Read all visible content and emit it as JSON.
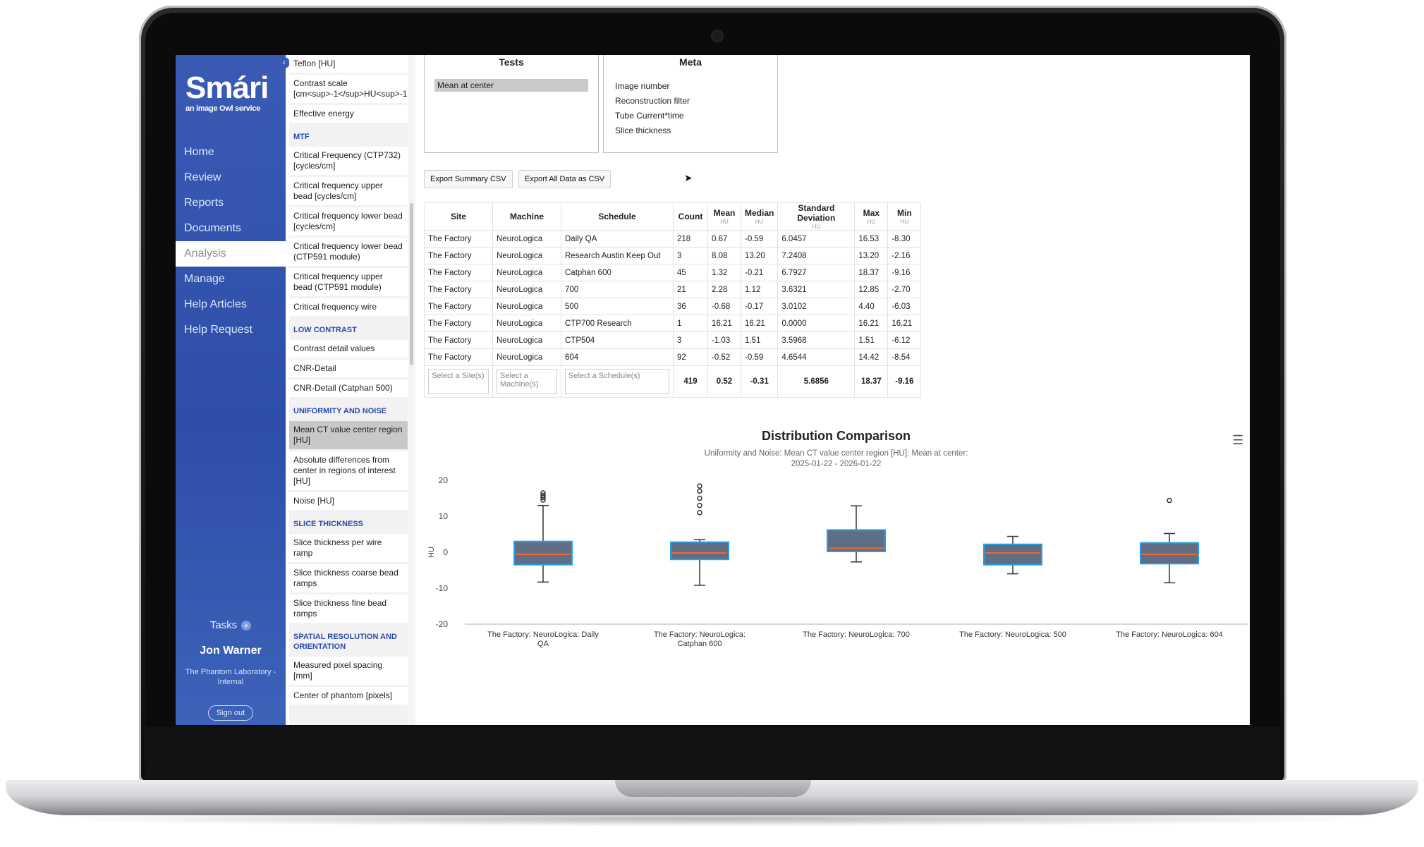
{
  "sidebar": {
    "logo": "Smári",
    "logo_sub": "an image Owl service",
    "nav": [
      "Home",
      "Review",
      "Reports",
      "Documents",
      "Analysis",
      "Manage",
      "Help Articles",
      "Help Request"
    ],
    "active_nav": "Analysis",
    "tasks_label": "Tasks",
    "user_name": "Jon Warner",
    "organization": "The Phantom Laboratory - Internal",
    "sign_out": "Sign out"
  },
  "metrics": [
    {
      "label": "Teflon [HU]"
    },
    {
      "label": "Contrast scale [cm<sup>-1</sup>HU<sup>-1"
    },
    {
      "label": "Effective energy"
    },
    {
      "heading": "MTF"
    },
    {
      "label": "Critical Frequency (CTP732) [cycles/cm]"
    },
    {
      "label": "Critical frequency upper bead [cycles/cm]"
    },
    {
      "label": "Critical frequency lower bead [cycles/cm]"
    },
    {
      "label": "Critical frequency lower bead (CTP591 module)"
    },
    {
      "label": "Critical frequency upper bead (CTP591 module)"
    },
    {
      "label": "Critical frequency wire"
    },
    {
      "heading": "LOW CONTRAST"
    },
    {
      "label": "Contrast detail values"
    },
    {
      "label": "CNR-Detail"
    },
    {
      "label": "CNR-Detail (Catphan 500)"
    },
    {
      "heading": "UNIFORMITY AND NOISE"
    },
    {
      "label": "Mean CT value center region [HU]",
      "selected": true
    },
    {
      "label": "Absolute differences from center in regions of interest [HU]"
    },
    {
      "label": "Noise [HU]"
    },
    {
      "heading": "SLICE THICKNESS"
    },
    {
      "label": "Slice thickness per wire ramp"
    },
    {
      "label": "Slice thickness coarse bead ramps"
    },
    {
      "label": "Slice thickness fine bead ramps"
    },
    {
      "heading": "SPATIAL RESOLUTION AND ORIENTATION"
    },
    {
      "label": "Measured pixel spacing [mm]"
    },
    {
      "label": "Center of phantom [pixels]"
    }
  ],
  "tests_panel": {
    "title": "Tests",
    "selected": "Mean at center"
  },
  "meta_panel": {
    "title": "Meta",
    "items": [
      "Image number",
      "Reconstruction filter",
      "Tube Current*time",
      "Slice thickness"
    ]
  },
  "buttons": {
    "export_summary": "Export Summary CSV",
    "export_all": "Export All Data as CSV"
  },
  "table": {
    "headers": [
      {
        "label": "Site"
      },
      {
        "label": "Machine"
      },
      {
        "label": "Schedule"
      },
      {
        "label": "Count"
      },
      {
        "label": "Mean",
        "unit": "HU"
      },
      {
        "label": "Median",
        "unit": "HU"
      },
      {
        "label": "Standard Deviation",
        "unit": "HU"
      },
      {
        "label": "Max",
        "unit": "HU"
      },
      {
        "label": "Min",
        "unit": "HU"
      }
    ],
    "rows": [
      [
        "The Factory",
        "NeuroLogica",
        "Daily QA",
        "218",
        "0.67",
        "-0.59",
        "6.0457",
        "16.53",
        "-8.30"
      ],
      [
        "The Factory",
        "NeuroLogica",
        "Research Austin Keep Out",
        "3",
        "8.08",
        "13.20",
        "7.2408",
        "13.20",
        "-2.16"
      ],
      [
        "The Factory",
        "NeuroLogica",
        "Catphan 600",
        "45",
        "1.32",
        "-0.21",
        "6.7927",
        "18.37",
        "-9.16"
      ],
      [
        "The Factory",
        "NeuroLogica",
        "700",
        "21",
        "2.28",
        "1.12",
        "3.6321",
        "12.85",
        "-2.70"
      ],
      [
        "The Factory",
        "NeuroLogica",
        "500",
        "36",
        "-0.68",
        "-0.17",
        "3.0102",
        "4.40",
        "-6.03"
      ],
      [
        "The Factory",
        "NeuroLogica",
        "CTP700 Research",
        "1",
        "16.21",
        "16.21",
        "0.0000",
        "16.21",
        "16.21"
      ],
      [
        "The Factory",
        "NeuroLogica",
        "CTP504",
        "3",
        "-1.03",
        "1.51",
        "3.5968",
        "1.51",
        "-6.12"
      ],
      [
        "The Factory",
        "NeuroLogica",
        "604",
        "92",
        "-0.52",
        "-0.59",
        "4.6544",
        "14.42",
        "-8.54"
      ]
    ],
    "filters": {
      "site": "Select a Site(s)",
      "machine": "Select a Machine(s)",
      "schedule": "Select a Schedule(s)"
    },
    "totals": [
      "419",
      "0.52",
      "-0.31",
      "5.6856",
      "18.37",
      "-9.16"
    ]
  },
  "chart_data": {
    "type": "box",
    "title": "Distribution Comparison",
    "subtitle": "Uniformity and Noise: Mean CT value center region [HU]: Mean at center:",
    "date_range": "2025-01-22 - 2026-01-22",
    "ylabel": "HU",
    "ylim": [
      -20,
      20
    ],
    "yticks": [
      20,
      10,
      0,
      -10,
      -20
    ],
    "grid": false,
    "categories": [
      "The Factory: NeuroLogica: Daily QA",
      "The Factory: NeuroLogica: Catphan 600",
      "The Factory: NeuroLogica: 700",
      "The Factory: NeuroLogica: 500",
      "The Factory: NeuroLogica: 604"
    ],
    "boxes": [
      {
        "min": -8.3,
        "q1": -3.5,
        "median": -0.6,
        "q3": 3.0,
        "max": 13.0,
        "outliers": [
          14.5,
          15.2,
          15.8,
          16.5
        ]
      },
      {
        "min": -9.2,
        "q1": -2.0,
        "median": -0.2,
        "q3": 2.8,
        "max": 3.5,
        "outliers": [
          11.0,
          13.0,
          15.0,
          17.0,
          18.4
        ]
      },
      {
        "min": -2.7,
        "q1": 0.2,
        "median": 1.1,
        "q3": 6.2,
        "max": 12.9,
        "outliers": []
      },
      {
        "min": -6.0,
        "q1": -3.5,
        "median": -0.2,
        "q3": 2.2,
        "max": 4.4,
        "outliers": []
      },
      {
        "min": -8.5,
        "q1": -3.2,
        "median": -0.6,
        "q3": 2.6,
        "max": 5.2,
        "outliers": [
          14.4
        ]
      }
    ],
    "colors": {
      "box_fill": "#5f6d85",
      "box_border": "#2b9fe6",
      "median": "#f06a2a",
      "whisker": "#333333",
      "axis": "#333333"
    }
  }
}
